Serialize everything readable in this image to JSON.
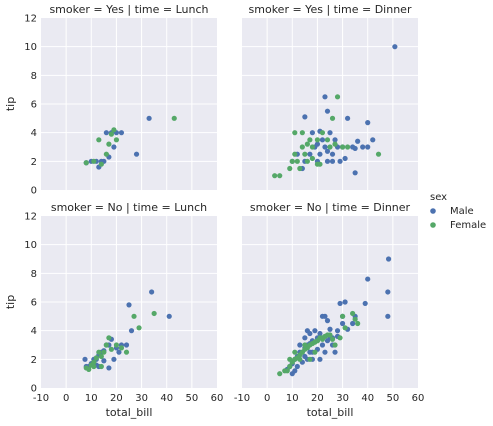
{
  "chart_data": {
    "type": "scatter",
    "xlabel": "total_bill",
    "ylabel": "tip",
    "xlim": [
      -10,
      60
    ],
    "ylim": [
      0,
      12
    ],
    "xticks": [
      -10,
      0,
      10,
      20,
      30,
      40,
      50,
      60
    ],
    "yticks": [
      0,
      2,
      4,
      6,
      8,
      10,
      12
    ],
    "grid": true,
    "legend": {
      "title": "sex",
      "placement": "right",
      "entries": [
        {
          "name": "Male",
          "color": "#4c72b0"
        },
        {
          "name": "Female",
          "color": "#55a868"
        }
      ]
    },
    "panels": [
      {
        "title": "smoker = Yes | time = Lunch",
        "series": [
          {
            "name": "Male",
            "points": [
              [
                8,
                1.9
              ],
              [
                10,
                2
              ],
              [
                12,
                2
              ],
              [
                13,
                1.6
              ],
              [
                14,
                2
              ],
              [
                15,
                2
              ],
              [
                16,
                4
              ],
              [
                17,
                2.3
              ],
              [
                18,
                4
              ],
              [
                19,
                3
              ],
              [
                20,
                4
              ],
              [
                22,
                4
              ],
              [
                33,
                5
              ],
              [
                28,
                2.5
              ]
            ]
          },
          {
            "name": "Female",
            "points": [
              [
                8,
                1.9
              ],
              [
                11,
                2
              ],
              [
                13,
                3.5
              ],
              [
                14,
                1.8
              ],
              [
                16,
                2.5
              ],
              [
                17,
                3.2
              ],
              [
                18,
                3.9
              ],
              [
                19,
                4.2
              ],
              [
                20,
                3.5
              ],
              [
                43,
                5
              ]
            ]
          }
        ]
      },
      {
        "title": "smoker = Yes | time = Dinner",
        "series": [
          {
            "name": "Male",
            "points": [
              [
                50.8,
                10
              ],
              [
                40,
                4.7
              ],
              [
                32,
                5
              ],
              [
                15,
                5.1
              ],
              [
                23,
                6.5
              ],
              [
                24,
                5.5
              ],
              [
                18,
                4
              ],
              [
                21,
                4.1
              ],
              [
                25,
                4
              ],
              [
                28,
                3
              ],
              [
                30,
                3
              ],
              [
                34,
                3
              ],
              [
                35,
                2.9
              ],
              [
                36,
                3.4
              ],
              [
                38,
                3
              ],
              [
                40,
                3
              ],
              [
                42,
                3.5
              ],
              [
                20,
                3.2
              ],
              [
                22,
                3.5
              ],
              [
                24,
                2.7
              ],
              [
                26,
                2.5
              ],
              [
                14,
                1.5
              ],
              [
                15,
                2
              ],
              [
                17,
                2.5
              ],
              [
                19,
                3
              ],
              [
                12,
                2.5
              ],
              [
                10,
                2
              ],
              [
                20,
                2
              ],
              [
                24,
                2
              ],
              [
                26,
                2
              ],
              [
                29,
                2
              ],
              [
                31,
                2.2
              ],
              [
                35,
                1.2
              ],
              [
                27,
                3.5
              ],
              [
                23,
                3
              ],
              [
                21,
                2.5
              ]
            ]
          },
          {
            "name": "Female",
            "points": [
              [
                3,
                1
              ],
              [
                5,
                1
              ],
              [
                10,
                2
              ],
              [
                11,
                2.5
              ],
              [
                12,
                2
              ],
              [
                14,
                3
              ],
              [
                15,
                2.5
              ],
              [
                16,
                3.2
              ],
              [
                17,
                3.5
              ],
              [
                18,
                3
              ],
              [
                20,
                3.5
              ],
              [
                22,
                4
              ],
              [
                24,
                3.5
              ],
              [
                26,
                5
              ],
              [
                28,
                6.5
              ],
              [
                30,
                3
              ],
              [
                32,
                3
              ],
              [
                44.3,
                2.5
              ],
              [
                11,
                4
              ],
              [
                14,
                4
              ],
              [
                20,
                1.8
              ],
              [
                16,
                2
              ],
              [
                18,
                2.2
              ],
              [
                13,
                1.5
              ],
              [
                9,
                1.5
              ],
              [
                25,
                3
              ],
              [
                27,
                3.2
              ],
              [
                21,
                1.8
              ]
            ]
          }
        ]
      },
      {
        "title": "smoker = No | time = Lunch",
        "series": [
          {
            "name": "Male",
            "points": [
              [
                7.5,
                2
              ],
              [
                8,
                1.5
              ],
              [
                10,
                1.7
              ],
              [
                11,
                2
              ],
              [
                12,
                2
              ],
              [
                13,
                2.3
              ],
              [
                14,
                2.5
              ],
              [
                15,
                2.6
              ],
              [
                16,
                3
              ],
              [
                17,
                3
              ],
              [
                18,
                3.4
              ],
              [
                20,
                2.8
              ],
              [
                22,
                3
              ],
              [
                24,
                3
              ],
              [
                26,
                4
              ],
              [
                25,
                5.8
              ],
              [
                34,
                6.7
              ],
              [
                41,
                5
              ],
              [
                13,
                1.5
              ],
              [
                15,
                1.9
              ],
              [
                19,
                2
              ],
              [
                21,
                2.5
              ],
              [
                17,
                1.4
              ],
              [
                12,
                1.6
              ],
              [
                9,
                1.5
              ]
            ]
          },
          {
            "name": "Female",
            "points": [
              [
                8,
                1.4
              ],
              [
                9,
                1.3
              ],
              [
                10,
                1.6
              ],
              [
                11,
                1.8
              ],
              [
                12,
                2.1
              ],
              [
                13,
                2.5
              ],
              [
                14,
                2.2
              ],
              [
                15,
                2.5
              ],
              [
                16,
                3
              ],
              [
                18,
                2.7
              ],
              [
                20,
                3
              ],
              [
                22,
                2.8
              ],
              [
                24,
                2.5
              ],
              [
                27,
                5
              ],
              [
                29,
                4.2
              ],
              [
                35,
                5.2
              ],
              [
                14,
                1.5
              ],
              [
                11,
                1.5
              ],
              [
                17,
                3.5
              ]
            ]
          }
        ]
      },
      {
        "title": "smoker = No | time = Dinner",
        "series": [
          {
            "name": "Male",
            "points": [
              [
                48.3,
                9
              ],
              [
                48,
                6.7
              ],
              [
                48,
                5
              ],
              [
                40,
                7.6
              ],
              [
                39,
                5.9
              ],
              [
                35,
                5
              ],
              [
                31,
                6
              ],
              [
                29,
                5.9
              ],
              [
                30,
                5
              ],
              [
                28,
                4
              ],
              [
                32,
                4.1
              ],
              [
                22,
                5
              ],
              [
                23,
                5
              ],
              [
                24,
                4.7
              ],
              [
                21,
                3.8
              ],
              [
                25,
                4.1
              ],
              [
                26,
                3.5
              ],
              [
                20,
                3.5
              ],
              [
                18,
                3.3
              ],
              [
                17,
                3.1
              ],
              [
                16,
                3
              ],
              [
                15,
                2.8
              ],
              [
                14,
                2.5
              ],
              [
                13,
                2.5
              ],
              [
                12,
                2.2
              ],
              [
                11,
                2
              ],
              [
                10,
                1.7
              ],
              [
                9,
                1.5
              ],
              [
                8,
                1.3
              ],
              [
                12,
                1.5
              ],
              [
                14,
                1.8
              ],
              [
                16,
                2
              ],
              [
                18,
                2.5
              ],
              [
                20,
                2.7
              ],
              [
                22,
                3
              ],
              [
                24,
                3.3
              ],
              [
                26,
                3
              ],
              [
                28,
                3.6
              ],
              [
                15,
                3.5
              ],
              [
                17,
                2.5
              ],
              [
                19,
                4
              ],
              [
                21,
                2
              ],
              [
                23,
                2.5
              ],
              [
                13,
                3
              ],
              [
                11,
                1.2
              ],
              [
                10,
                1
              ],
              [
                27,
                2.5
              ],
              [
                25,
                3.5
              ],
              [
                16,
                4
              ],
              [
                18,
                2
              ],
              [
                20,
                3.3
              ],
              [
                30,
                4.5
              ],
              [
                34,
                4.5
              ],
              [
                17,
                3.8
              ],
              [
                15,
                2.2
              ]
            ]
          },
          {
            "name": "Female",
            "points": [
              [
                5,
                1
              ],
              [
                7,
                1.2
              ],
              [
                9,
                1.5
              ],
              [
                10,
                1.8
              ],
              [
                11,
                2
              ],
              [
                12,
                2.1
              ],
              [
                13,
                2.3
              ],
              [
                14,
                2.5
              ],
              [
                15,
                2.7
              ],
              [
                16,
                2.8
              ],
              [
                17,
                3
              ],
              [
                18,
                3.1
              ],
              [
                19,
                3.2
              ],
              [
                20,
                3.3
              ],
              [
                21,
                3.5
              ],
              [
                22,
                3.5
              ],
              [
                23,
                3.6
              ],
              [
                24,
                3.7
              ],
              [
                25,
                3.7
              ],
              [
                30,
                5
              ],
              [
                34,
                5.2
              ],
              [
                35,
                4.8
              ],
              [
                36,
                4.5
              ],
              [
                29,
                3.5
              ],
              [
                27,
                3
              ],
              [
                9,
                2
              ],
              [
                11,
                2.5
              ],
              [
                13,
                2
              ],
              [
                15,
                3
              ],
              [
                17,
                2
              ],
              [
                19,
                2.5
              ],
              [
                22,
                3.4
              ],
              [
                26,
                3.4
              ],
              [
                31,
                4.2
              ],
              [
                8,
                1.2
              ]
            ]
          }
        ]
      }
    ]
  }
}
